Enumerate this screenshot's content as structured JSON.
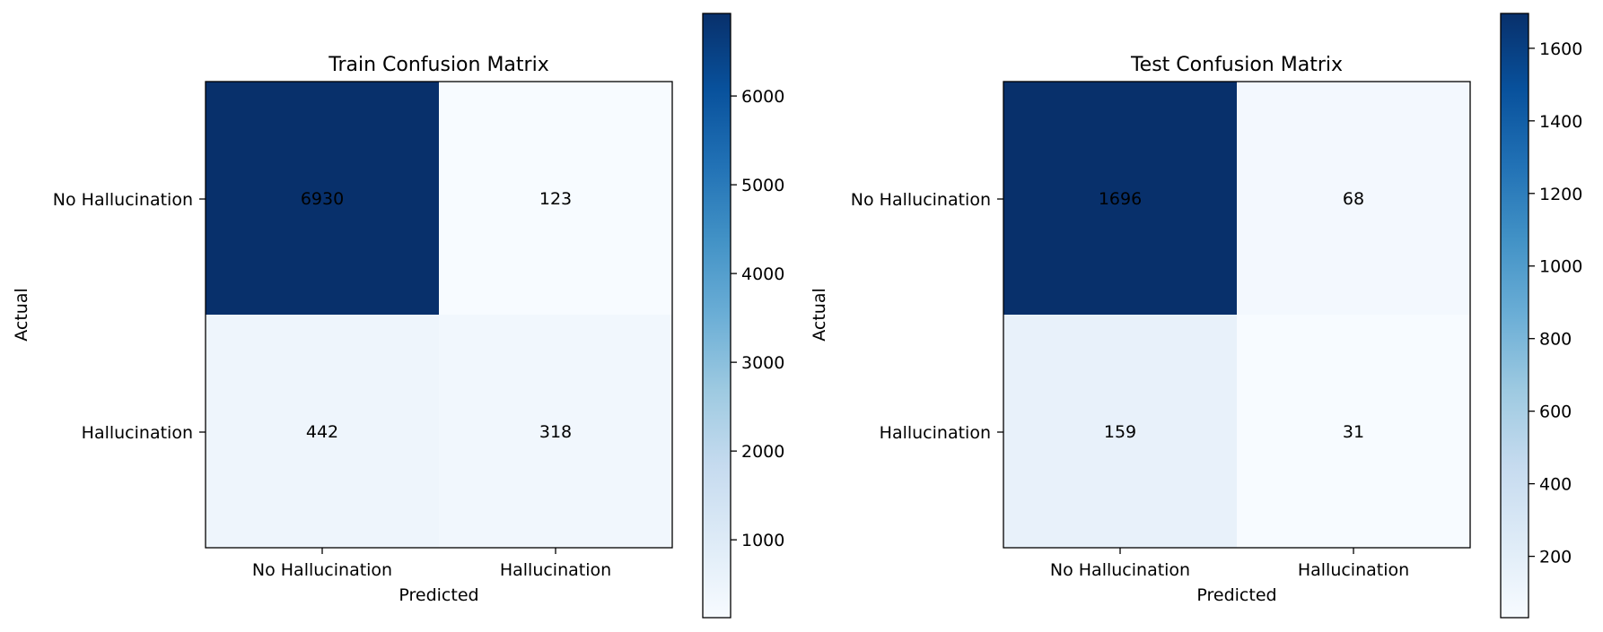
{
  "colormap": [
    "#f7fbff",
    "#deebf7",
    "#c6dbef",
    "#9ecae1",
    "#6baed6",
    "#4292c6",
    "#2171b5",
    "#08519c",
    "#08306b"
  ],
  "chart_data": [
    {
      "type": "heatmap",
      "title": "Train Confusion Matrix",
      "xlabel": "Predicted",
      "ylabel": "Actual",
      "x_categories": [
        "No Hallucination",
        "Hallucination"
      ],
      "y_categories": [
        "No Hallucination",
        "Hallucination"
      ],
      "values": [
        [
          6930,
          123
        ],
        [
          442,
          318
        ]
      ],
      "colorbar": {
        "ticks": [
          1000,
          2000,
          3000,
          4000,
          5000,
          6000
        ]
      }
    },
    {
      "type": "heatmap",
      "title": "Test Confusion Matrix",
      "xlabel": "Predicted",
      "ylabel": "Actual",
      "x_categories": [
        "No Hallucination",
        "Hallucination"
      ],
      "y_categories": [
        "No Hallucination",
        "Hallucination"
      ],
      "values": [
        [
          1696,
          68
        ],
        [
          159,
          31
        ]
      ],
      "colorbar": {
        "ticks": [
          200,
          400,
          600,
          800,
          1000,
          1200,
          1400,
          1600
        ]
      }
    }
  ]
}
